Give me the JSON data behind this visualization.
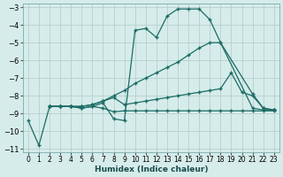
{
  "xlabel": "Humidex (Indice chaleur)",
  "xlim": [
    -0.5,
    23.5
  ],
  "ylim": [
    -11.2,
    -2.8
  ],
  "yticks": [
    -11,
    -10,
    -9,
    -8,
    -7,
    -6,
    -5,
    -4,
    -3
  ],
  "xticks": [
    0,
    1,
    2,
    3,
    4,
    5,
    6,
    7,
    8,
    9,
    10,
    11,
    12,
    13,
    14,
    15,
    16,
    17,
    18,
    19,
    20,
    21,
    22,
    23
  ],
  "bg_color": "#d5ecea",
  "grid_color": "#b8d0cd",
  "line_color": "#1c6b65",
  "line1_x": [
    0,
    1,
    2,
    3,
    4,
    5,
    6,
    7,
    8,
    9,
    10,
    11,
    12,
    13,
    14,
    15,
    16,
    17,
    18,
    21,
    22,
    23
  ],
  "line1_y": [
    -9.4,
    -10.8,
    -8.6,
    -8.6,
    -8.6,
    -8.7,
    -8.6,
    -8.4,
    -9.3,
    -9.4,
    -4.3,
    -4.2,
    -4.7,
    -3.5,
    -3.1,
    -3.1,
    -3.1,
    -3.7,
    -5.0,
    -8.7,
    -8.8,
    -8.8
  ],
  "line2_x": [
    2,
    3,
    4,
    5,
    6,
    7,
    8,
    9,
    10,
    11,
    12,
    13,
    14,
    15,
    16,
    17,
    18,
    21,
    22,
    23
  ],
  "line2_y": [
    -8.6,
    -8.6,
    -8.6,
    -8.6,
    -8.5,
    -8.3,
    -8.0,
    -7.7,
    -7.3,
    -7.0,
    -6.7,
    -6.4,
    -6.1,
    -5.7,
    -5.3,
    -5.0,
    -5.0,
    -7.9,
    -8.7,
    -8.8
  ],
  "line3_x": [
    2,
    3,
    4,
    5,
    6,
    7,
    8,
    9,
    10,
    11,
    12,
    13,
    14,
    15,
    16,
    17,
    18,
    19,
    20,
    21,
    22,
    23
  ],
  "line3_y": [
    -8.6,
    -8.6,
    -8.6,
    -8.6,
    -8.5,
    -8.3,
    -8.1,
    -8.5,
    -8.4,
    -8.3,
    -8.2,
    -8.1,
    -8.0,
    -7.9,
    -7.8,
    -7.7,
    -7.6,
    -6.7,
    -7.8,
    -8.0,
    -8.7,
    -8.8
  ],
  "line4_x": [
    2,
    3,
    4,
    5,
    6,
    7,
    8,
    9,
    10,
    11,
    12,
    13,
    14,
    15,
    16,
    17,
    18,
    19,
    20,
    21,
    22,
    23
  ],
  "line4_y": [
    -8.6,
    -8.6,
    -8.6,
    -8.7,
    -8.6,
    -8.7,
    -8.9,
    -8.85,
    -8.85,
    -8.85,
    -8.85,
    -8.85,
    -8.85,
    -8.85,
    -8.85,
    -8.85,
    -8.85,
    -8.85,
    -8.85,
    -8.85,
    -8.85,
    -8.85
  ],
  "markersize": 2.0
}
